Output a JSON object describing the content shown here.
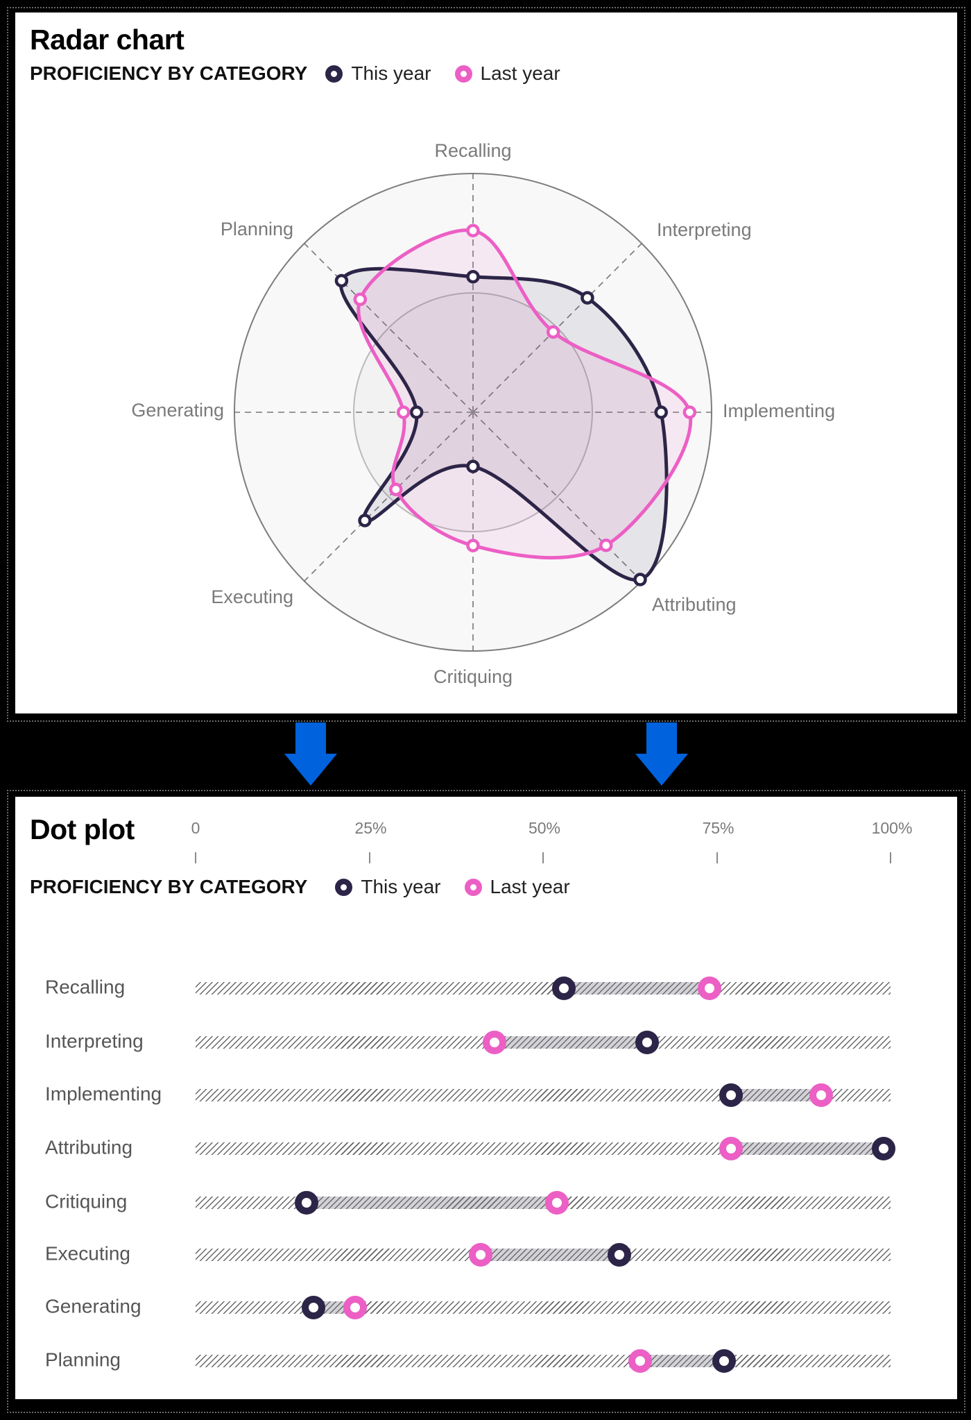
{
  "radar": {
    "title": "Radar chart",
    "legend_heading": "PROFICIENCY BY CATEGORY",
    "legend": [
      {
        "label": "This year",
        "color": "#2d2548"
      },
      {
        "label": "Last year",
        "color": "#ec5fc5"
      }
    ]
  },
  "dotplot": {
    "title": "Dot plot",
    "legend_heading": "PROFICIENCY BY CATEGORY",
    "legend": [
      {
        "label": "This year",
        "color": "#2d2548"
      },
      {
        "label": "Last year",
        "color": "#ec5fc5"
      }
    ],
    "ticks": [
      "0",
      "25%",
      "50%",
      "75%",
      "100%"
    ]
  },
  "colors": {
    "this_year": "#2d2548",
    "last_year": "#ec5fc5",
    "arrow": "#0062dc",
    "axis_label": "#7a7a7a"
  },
  "chart_data": [
    {
      "type": "radar",
      "title": "Radar chart",
      "subtitle": "PROFICIENCY BY CATEGORY",
      "categories": [
        "Recalling",
        "Interpreting",
        "Implementing",
        "Attributing",
        "Critiquing",
        "Executing",
        "Generating",
        "Planning"
      ],
      "series": [
        {
          "name": "This year",
          "values": [
            53,
            65,
            77,
            99,
            16,
            61,
            17,
            76
          ]
        },
        {
          "name": "Last year",
          "values": [
            74,
            43,
            90,
            77,
            52,
            41,
            23,
            64
          ]
        }
      ],
      "rlim": [
        0,
        100
      ],
      "rings": [
        50,
        100
      ],
      "legend_position": "top-left"
    },
    {
      "type": "dot",
      "title": "Dot plot",
      "subtitle": "PROFICIENCY BY CATEGORY",
      "categories": [
        "Recalling",
        "Interpreting",
        "Implementing",
        "Attributing",
        "Critiquing",
        "Executing",
        "Generating",
        "Planning"
      ],
      "series": [
        {
          "name": "This year",
          "values": [
            53,
            65,
            77,
            99,
            16,
            61,
            17,
            76
          ]
        },
        {
          "name": "Last year",
          "values": [
            74,
            43,
            90,
            77,
            52,
            41,
            23,
            64
          ]
        }
      ],
      "xlim": [
        0,
        100
      ],
      "xticks": [
        "0",
        "25%",
        "50%",
        "75%",
        "100%"
      ],
      "legend_position": "top-left"
    }
  ]
}
